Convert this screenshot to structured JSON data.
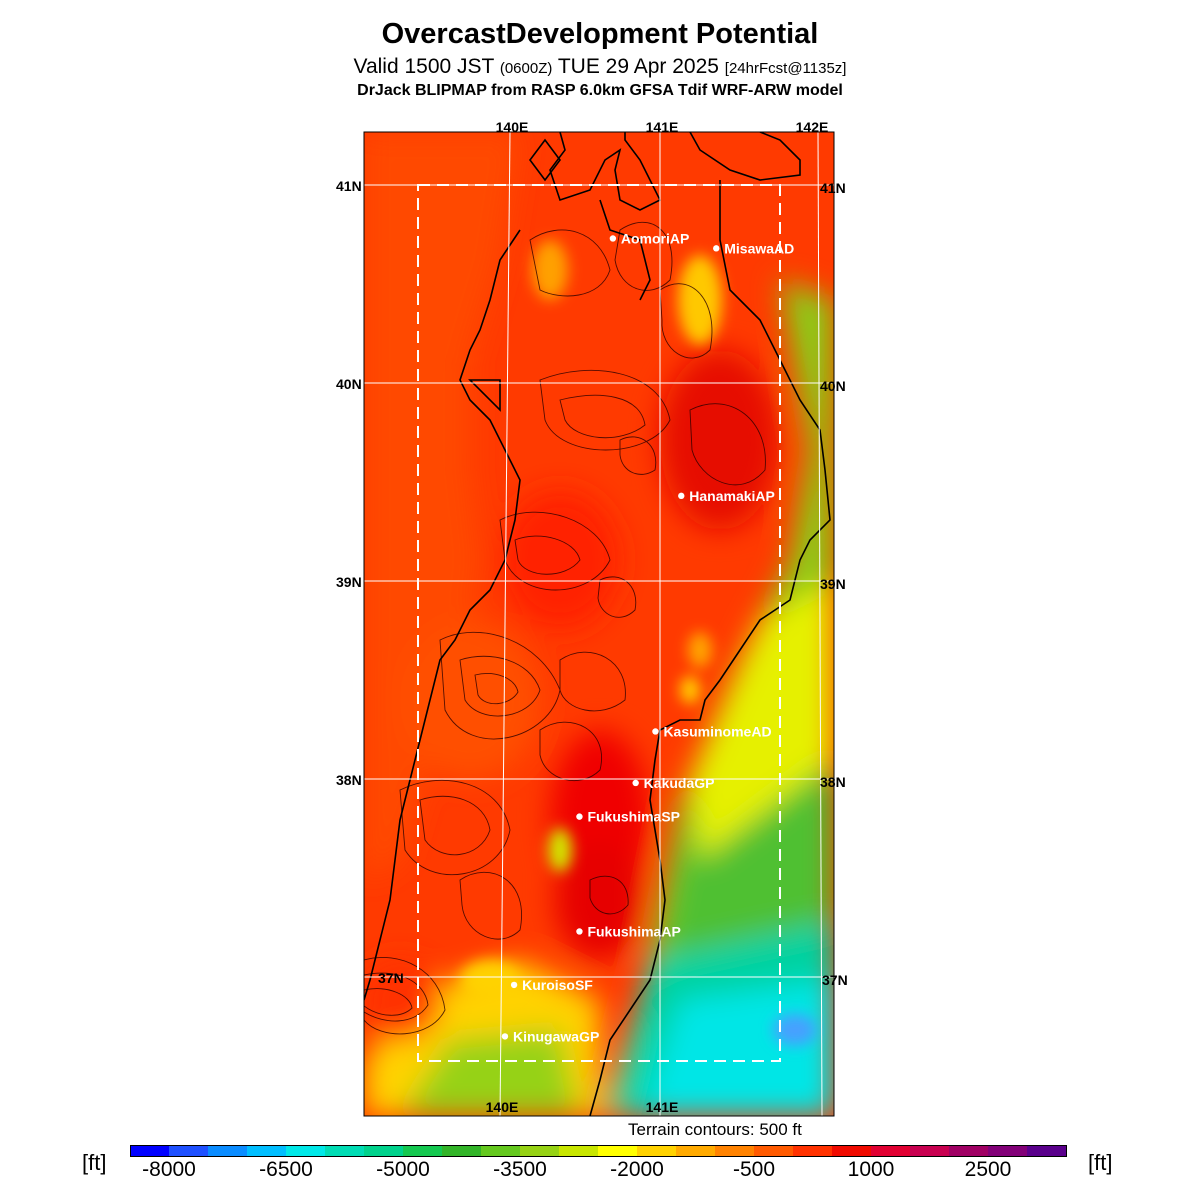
{
  "title": "OvercastDevelopment Potential",
  "subtitle": {
    "valid": "Valid 1500 JST",
    "utc": "(0600Z)",
    "date": "TUE 29 Apr 2025",
    "forecast": "[24hrFcst@1135z]"
  },
  "model_line": "DrJack BLIPMAP from RASP 6.0km GFSA Tdif WRF-ARW model",
  "map": {
    "lon_labels_top": [
      "140E",
      "141E",
      "142E"
    ],
    "lon_labels_bottom": [
      "140E",
      "141E"
    ],
    "lat_labels_left": [
      "41N",
      "40N",
      "39N",
      "38N",
      "37N"
    ],
    "lat_labels_right": [
      "41N",
      "40N",
      "39N",
      "38N",
      "37N"
    ],
    "stations": [
      {
        "name": "AomoriAP",
        "lon": 140.69,
        "lat": 40.73
      },
      {
        "name": "MisawaAD",
        "lon": 141.37,
        "lat": 40.68
      },
      {
        "name": "HanamakiAP",
        "lon": 141.14,
        "lat": 39.43
      },
      {
        "name": "KasuminomeAD",
        "lon": 140.97,
        "lat": 38.24
      },
      {
        "name": "KakudaGP",
        "lon": 140.84,
        "lat": 37.98
      },
      {
        "name": "FukushimaSP",
        "lon": 140.47,
        "lat": 37.81
      },
      {
        "name": "FukushimaAP",
        "lon": 140.47,
        "lat": 37.23
      },
      {
        "name": "KuroisoSF",
        "lon": 140.04,
        "lat": 36.96
      },
      {
        "name": "KinugawaGP",
        "lon": 139.98,
        "lat": 36.7
      }
    ]
  },
  "terrain_note": "Terrain contours: 500 ft",
  "colorbar": {
    "unit": "[ft]",
    "tick_labels": [
      "-8000",
      "-6500",
      "-5000",
      "-3500",
      "-2000",
      "-500",
      "1000",
      "2500"
    ],
    "colors": [
      "#0000ff",
      "#1e50ff",
      "#0a8cff",
      "#00beff",
      "#00e8e8",
      "#00dcb4",
      "#00d28c",
      "#14c850",
      "#32b428",
      "#64c81e",
      "#96d214",
      "#c8e600",
      "#ffff00",
      "#ffd200",
      "#ffaa00",
      "#ff8200",
      "#ff5a00",
      "#ff3200",
      "#f00a00",
      "#e10032",
      "#c80050",
      "#a00064",
      "#820078",
      "#5a008c"
    ]
  }
}
